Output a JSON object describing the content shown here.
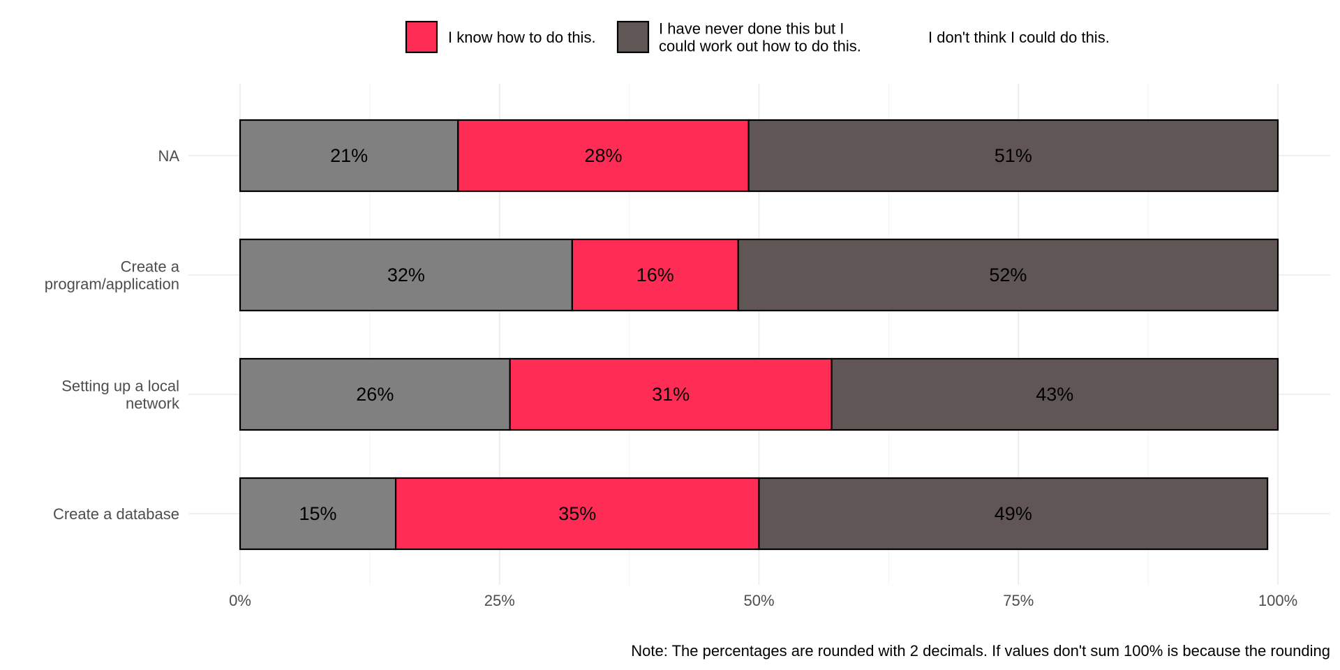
{
  "chart_data": {
    "type": "bar",
    "orientation": "horizontal",
    "stacked": true,
    "categories": [
      "NA",
      "Create a program/application",
      "Setting up a local network",
      "Create a database"
    ],
    "category_lines": [
      [
        "NA"
      ],
      [
        "Create a",
        "program/application"
      ],
      [
        "Setting up a local",
        "network"
      ],
      [
        "Create a database"
      ]
    ],
    "series": [
      {
        "name": "I don't think I could do this.",
        "color": "#808080",
        "values": [
          21,
          32,
          26,
          15
        ],
        "labels": [
          "21%",
          "32%",
          "26%",
          "15%"
        ]
      },
      {
        "name": "I know how to do this.",
        "color": "#ff2d55",
        "values": [
          28,
          16,
          31,
          35
        ],
        "labels": [
          "28%",
          "16%",
          "31%",
          "35%"
        ]
      },
      {
        "name": "I have never done this but I could work out how to do this.",
        "color": "#615656",
        "values": [
          51,
          52,
          43,
          49
        ],
        "labels": [
          "51%",
          "52%",
          "43%",
          "49%"
        ]
      }
    ],
    "legend": [
      {
        "lines": [
          "I know how to do this."
        ],
        "color": "#ff2d55",
        "swatch": true
      },
      {
        "lines": [
          "I have never done this but I",
          "could work out how to do this."
        ],
        "color": "#615656",
        "swatch": true
      },
      {
        "lines": [
          "I don't think I could do this."
        ],
        "color": "#808080",
        "swatch": false
      }
    ],
    "legend_position": "top",
    "x_ticks": [
      0,
      25,
      50,
      75,
      100
    ],
    "x_tick_labels": [
      "0%",
      "25%",
      "50%",
      "75%",
      "100%"
    ],
    "xlim": [
      0,
      100
    ],
    "grid": true,
    "note": "Note: The percentages are rounded with 2 decimals. If values don't sum 100% is because the rounding"
  }
}
